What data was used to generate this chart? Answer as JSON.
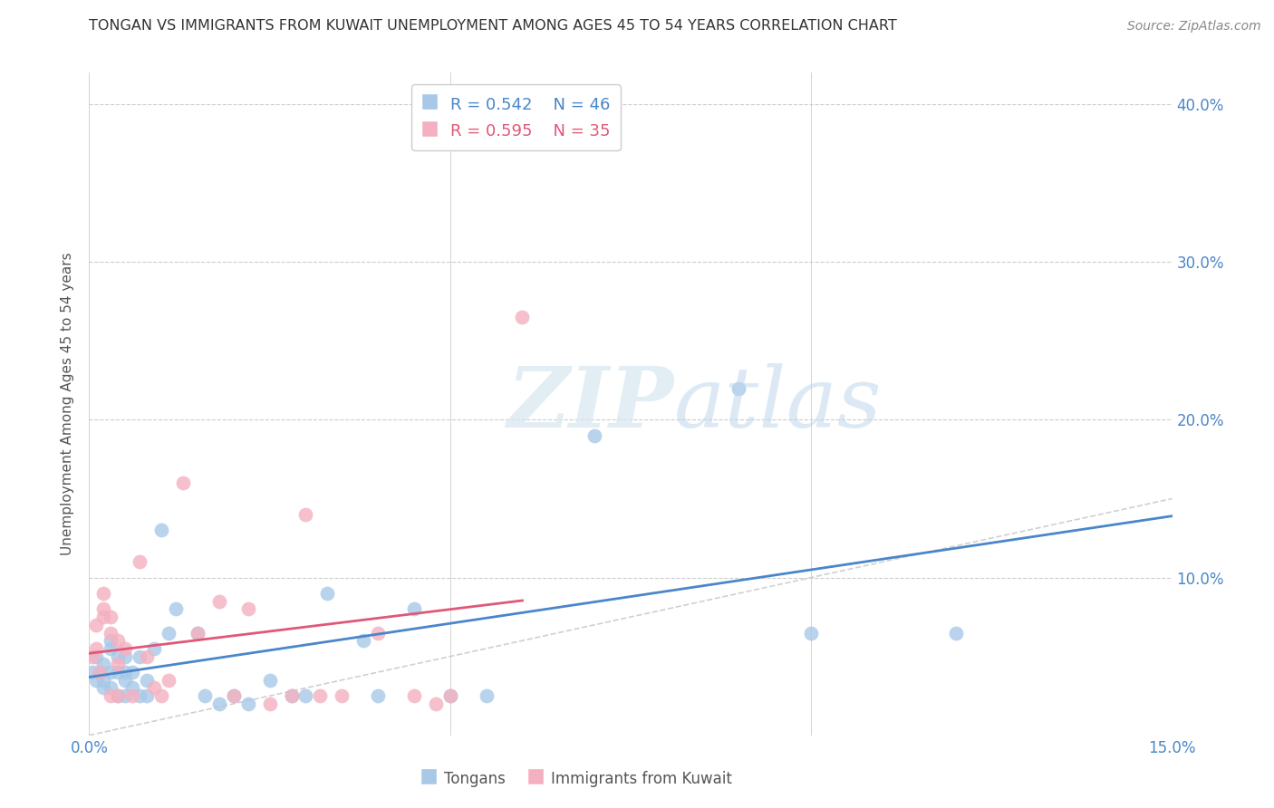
{
  "title": "TONGAN VS IMMIGRANTS FROM KUWAIT UNEMPLOYMENT AMONG AGES 45 TO 54 YEARS CORRELATION CHART",
  "source": "Source: ZipAtlas.com",
  "ylabel": "Unemployment Among Ages 45 to 54 years",
  "xlim": [
    0.0,
    0.15
  ],
  "ylim": [
    0.0,
    0.42
  ],
  "yticks": [
    0.1,
    0.2,
    0.3,
    0.4
  ],
  "yticklabels": [
    "10.0%",
    "20.0%",
    "30.0%",
    "40.0%"
  ],
  "xticks": [
    0.0,
    0.05,
    0.1,
    0.15
  ],
  "xticklabels": [
    "0.0%",
    "",
    "",
    "15.0%"
  ],
  "tongan_color": "#a8c8e8",
  "kuwait_color": "#f4b0c0",
  "trendline_tongan_color": "#4a86c8",
  "trendline_kuwait_color": "#e05878",
  "diagonal_color": "#d0d0d0",
  "legend_R_tongan": "R = 0.542",
  "legend_N_tongan": "N = 46",
  "legend_R_kuwait": "R = 0.595",
  "legend_N_kuwait": "N = 35",
  "background_color": "#ffffff",
  "grid_color": "#cccccc",
  "watermark_zip": "ZIP",
  "watermark_atlas": "atlas",
  "title_color": "#333333",
  "axis_color": "#4a86c8",
  "tongan_x": [
    0.0005,
    0.001,
    0.001,
    0.0015,
    0.002,
    0.002,
    0.002,
    0.003,
    0.003,
    0.003,
    0.003,
    0.004,
    0.004,
    0.004,
    0.005,
    0.005,
    0.005,
    0.005,
    0.006,
    0.006,
    0.007,
    0.007,
    0.008,
    0.008,
    0.009,
    0.01,
    0.011,
    0.012,
    0.015,
    0.016,
    0.018,
    0.02,
    0.022,
    0.025,
    0.028,
    0.03,
    0.033,
    0.038,
    0.04,
    0.045,
    0.05,
    0.055,
    0.07,
    0.09,
    0.1,
    0.12
  ],
  "tongan_y": [
    0.04,
    0.05,
    0.035,
    0.04,
    0.045,
    0.035,
    0.03,
    0.06,
    0.055,
    0.04,
    0.03,
    0.05,
    0.04,
    0.025,
    0.05,
    0.04,
    0.035,
    0.025,
    0.04,
    0.03,
    0.05,
    0.025,
    0.035,
    0.025,
    0.055,
    0.13,
    0.065,
    0.08,
    0.065,
    0.025,
    0.02,
    0.025,
    0.02,
    0.035,
    0.025,
    0.025,
    0.09,
    0.06,
    0.025,
    0.08,
    0.025,
    0.025,
    0.19,
    0.22,
    0.065,
    0.065
  ],
  "kuwait_x": [
    0.0005,
    0.001,
    0.001,
    0.0015,
    0.002,
    0.002,
    0.002,
    0.003,
    0.003,
    0.003,
    0.004,
    0.004,
    0.004,
    0.005,
    0.006,
    0.007,
    0.008,
    0.009,
    0.01,
    0.011,
    0.013,
    0.015,
    0.018,
    0.02,
    0.022,
    0.025,
    0.028,
    0.03,
    0.032,
    0.035,
    0.04,
    0.045,
    0.048,
    0.05,
    0.06
  ],
  "kuwait_y": [
    0.05,
    0.055,
    0.07,
    0.04,
    0.075,
    0.08,
    0.09,
    0.065,
    0.075,
    0.025,
    0.06,
    0.045,
    0.025,
    0.055,
    0.025,
    0.11,
    0.05,
    0.03,
    0.025,
    0.035,
    0.16,
    0.065,
    0.085,
    0.025,
    0.08,
    0.02,
    0.025,
    0.14,
    0.025,
    0.025,
    0.065,
    0.025,
    0.02,
    0.025,
    0.265
  ]
}
